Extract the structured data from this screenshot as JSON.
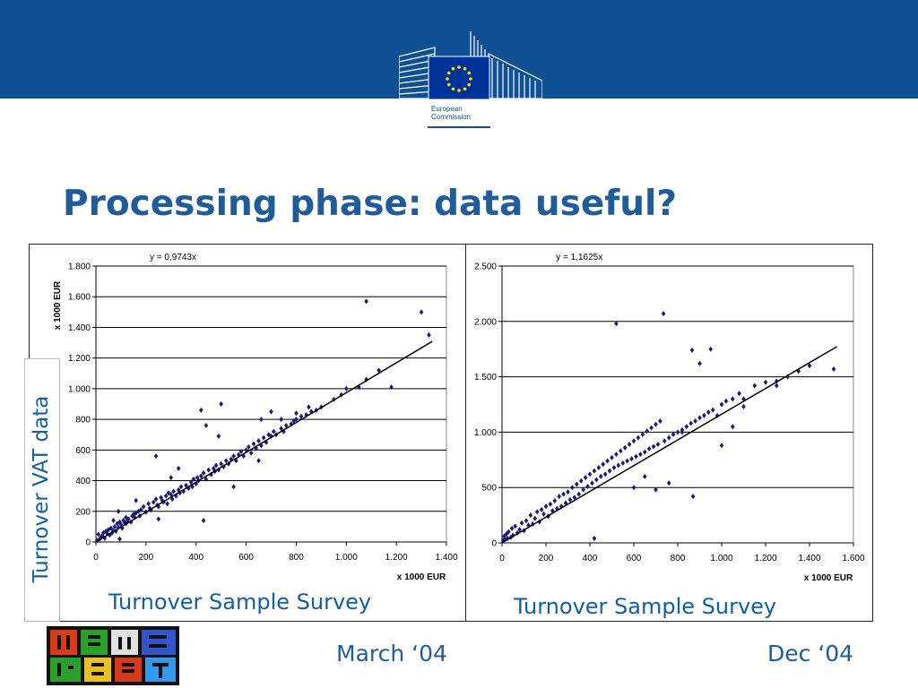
{
  "header": {
    "logo_line1": "European",
    "logo_line2": "Commission",
    "brand_color": "#0f4f93"
  },
  "slide": {
    "title": "Processing phase: data useful?",
    "y_axis_title": "Turnover VAT data",
    "left_subtitle": "Turnover Sample Survey",
    "right_subtitle": "Turnover Sample Survey",
    "date_left": "March ‘04",
    "date_right": "Dec ‘04"
  },
  "chart_data": [
    {
      "type": "scatter",
      "equation": "y = 0,9743x",
      "slope": 0.9743,
      "xlabel": "x 1000 EUR",
      "ylabel": "x 1000 EUR",
      "xlim": [
        0,
        1400
      ],
      "ylim": [
        0,
        1800
      ],
      "x_ticks": [
        0,
        200,
        400,
        600,
        800,
        1000,
        1200,
        1400
      ],
      "x_tick_labels": [
        "0",
        "200",
        "400",
        "600",
        "800",
        "1.000",
        "1.200",
        "1.400"
      ],
      "y_ticks": [
        0,
        200,
        400,
        600,
        800,
        1000,
        1200,
        1400,
        1600,
        1800
      ],
      "y_tick_labels": [
        "0",
        "200",
        "400",
        "600",
        "800",
        "1.000",
        "1.200",
        "1.400",
        "1.600",
        "1.800"
      ],
      "grid": true,
      "marker_color": "#1a1a7a",
      "points": [
        [
          5,
          10
        ],
        [
          10,
          50
        ],
        [
          15,
          20
        ],
        [
          20,
          30
        ],
        [
          25,
          40
        ],
        [
          30,
          60
        ],
        [
          35,
          25
        ],
        [
          40,
          70
        ],
        [
          45,
          55
        ],
        [
          50,
          80
        ],
        [
          55,
          45
        ],
        [
          60,
          90
        ],
        [
          65,
          60
        ],
        [
          70,
          75
        ],
        [
          75,
          100
        ],
        [
          80,
          70
        ],
        [
          85,
          120
        ],
        [
          90,
          95
        ],
        [
          95,
          130
        ],
        [
          100,
          115
        ],
        [
          105,
          90
        ],
        [
          110,
          140
        ],
        [
          115,
          125
        ],
        [
          120,
          160
        ],
        [
          125,
          135
        ],
        [
          130,
          150
        ],
        [
          140,
          130
        ],
        [
          145,
          170
        ],
        [
          150,
          180
        ],
        [
          155,
          160
        ],
        [
          160,
          190
        ],
        [
          170,
          200
        ],
        [
          175,
          170
        ],
        [
          180,
          210
        ],
        [
          190,
          230
        ],
        [
          200,
          195
        ],
        [
          210,
          250
        ],
        [
          215,
          220
        ],
        [
          220,
          210
        ],
        [
          230,
          260
        ],
        [
          240,
          280
        ],
        [
          245,
          240
        ],
        [
          250,
          230
        ],
        [
          260,
          290
        ],
        [
          265,
          270
        ],
        [
          270,
          260
        ],
        [
          280,
          300
        ],
        [
          285,
          250
        ],
        [
          290,
          320
        ],
        [
          300,
          310
        ],
        [
          305,
          280
        ],
        [
          310,
          330
        ],
        [
          320,
          300
        ],
        [
          330,
          340
        ],
        [
          335,
          320
        ],
        [
          340,
          360
        ],
        [
          350,
          330
        ],
        [
          360,
          370
        ],
        [
          370,
          350
        ],
        [
          380,
          390
        ],
        [
          385,
          360
        ],
        [
          390,
          410
        ],
        [
          400,
          380
        ],
        [
          405,
          420
        ],
        [
          410,
          400
        ],
        [
          420,
          430
        ],
        [
          430,
          450
        ],
        [
          440,
          410
        ],
        [
          450,
          470
        ],
        [
          460,
          440
        ],
        [
          470,
          480
        ],
        [
          475,
          460
        ],
        [
          480,
          500
        ],
        [
          490,
          470
        ],
        [
          500,
          510
        ],
        [
          510,
          490
        ],
        [
          520,
          530
        ],
        [
          530,
          510
        ],
        [
          540,
          540
        ],
        [
          550,
          560
        ],
        [
          560,
          530
        ],
        [
          570,
          570
        ],
        [
          580,
          590
        ],
        [
          590,
          560
        ],
        [
          600,
          600
        ],
        [
          610,
          620
        ],
        [
          620,
          580
        ],
        [
          630,
          640
        ],
        [
          640,
          610
        ],
        [
          650,
          660
        ],
        [
          660,
          630
        ],
        [
          670,
          680
        ],
        [
          680,
          650
        ],
        [
          690,
          700
        ],
        [
          700,
          690
        ],
        [
          710,
          720
        ],
        [
          720,
          700
        ],
        [
          740,
          740
        ],
        [
          750,
          720
        ],
        [
          760,
          760
        ],
        [
          780,
          770
        ],
        [
          790,
          790
        ],
        [
          800,
          800
        ],
        [
          820,
          820
        ],
        [
          840,
          830
        ],
        [
          860,
          850
        ],
        [
          880,
          860
        ],
        [
          900,
          880
        ],
        [
          950,
          930
        ],
        [
          980,
          960
        ],
        [
          1000,
          1000
        ],
        [
          1050,
          1010
        ],
        [
          1080,
          1060
        ],
        [
          1130,
          1120
        ],
        [
          1180,
          1010
        ],
        [
          240,
          560
        ],
        [
          300,
          420
        ],
        [
          330,
          480
        ],
        [
          430,
          140
        ],
        [
          420,
          860
        ],
        [
          440,
          760
        ],
        [
          490,
          690
        ],
        [
          500,
          900
        ],
        [
          550,
          360
        ],
        [
          650,
          530
        ],
        [
          660,
          800
        ],
        [
          700,
          850
        ],
        [
          740,
          800
        ],
        [
          800,
          840
        ],
        [
          850,
          880
        ],
        [
          1080,
          1570
        ],
        [
          1300,
          1500
        ],
        [
          1330,
          1350
        ],
        [
          70,
          140
        ],
        [
          90,
          200
        ],
        [
          95,
          20
        ],
        [
          120,
          120
        ],
        [
          160,
          270
        ],
        [
          250,
          150
        ]
      ]
    },
    {
      "type": "scatter",
      "equation": "y = 1,1625x",
      "slope": 1.1625,
      "xlabel": "x 1000 EUR",
      "xlim": [
        0,
        1600
      ],
      "ylim": [
        0,
        2500
      ],
      "x_ticks": [
        0,
        200,
        400,
        600,
        800,
        1000,
        1200,
        1400,
        1600
      ],
      "x_tick_labels": [
        "0",
        "200",
        "400",
        "600",
        "800",
        "1.000",
        "1.200",
        "1.400",
        "1.600"
      ],
      "y_ticks": [
        0,
        500,
        1000,
        1500,
        2000,
        2500
      ],
      "y_tick_labels": [
        "0",
        "500",
        "1.000",
        "1.500",
        "2.000",
        "2.500"
      ],
      "grid": true,
      "marker_color": "#1a1a7a",
      "points": [
        [
          5,
          20
        ],
        [
          10,
          60
        ],
        [
          15,
          30
        ],
        [
          20,
          80
        ],
        [
          25,
          40
        ],
        [
          30,
          100
        ],
        [
          40,
          50
        ],
        [
          45,
          130
        ],
        [
          50,
          70
        ],
        [
          60,
          150
        ],
        [
          70,
          90
        ],
        [
          80,
          120
        ],
        [
          90,
          180
        ],
        [
          100,
          110
        ],
        [
          110,
          200
        ],
        [
          120,
          160
        ],
        [
          130,
          250
        ],
        [
          140,
          170
        ],
        [
          150,
          220
        ],
        [
          160,
          280
        ],
        [
          170,
          190
        ],
        [
          180,
          300
        ],
        [
          190,
          260
        ],
        [
          200,
          330
        ],
        [
          210,
          240
        ],
        [
          220,
          350
        ],
        [
          230,
          290
        ],
        [
          240,
          380
        ],
        [
          250,
          310
        ],
        [
          260,
          420
        ],
        [
          270,
          330
        ],
        [
          280,
          440
        ],
        [
          290,
          360
        ],
        [
          300,
          460
        ],
        [
          310,
          390
        ],
        [
          320,
          500
        ],
        [
          330,
          410
        ],
        [
          340,
          530
        ],
        [
          350,
          440
        ],
        [
          360,
          560
        ],
        [
          370,
          480
        ],
        [
          380,
          590
        ],
        [
          390,
          510
        ],
        [
          400,
          620
        ],
        [
          410,
          540
        ],
        [
          420,
          650
        ],
        [
          430,
          570
        ],
        [
          440,
          680
        ],
        [
          450,
          600
        ],
        [
          460,
          710
        ],
        [
          470,
          620
        ],
        [
          480,
          740
        ],
        [
          490,
          650
        ],
        [
          500,
          770
        ],
        [
          510,
          680
        ],
        [
          520,
          800
        ],
        [
          530,
          700
        ],
        [
          540,
          830
        ],
        [
          550,
          720
        ],
        [
          560,
          860
        ],
        [
          570,
          740
        ],
        [
          580,
          890
        ],
        [
          590,
          760
        ],
        [
          600,
          920
        ],
        [
          610,
          780
        ],
        [
          620,
          950
        ],
        [
          630,
          800
        ],
        [
          640,
          980
        ],
        [
          650,
          820
        ],
        [
          660,
          1010
        ],
        [
          670,
          850
        ],
        [
          680,
          1040
        ],
        [
          690,
          870
        ],
        [
          700,
          1070
        ],
        [
          710,
          890
        ],
        [
          720,
          1100
        ],
        [
          740,
          920
        ],
        [
          760,
          950
        ],
        [
          780,
          980
        ],
        [
          800,
          1000
        ],
        [
          820,
          1020
        ],
        [
          840,
          1050
        ],
        [
          860,
          1080
        ],
        [
          880,
          1100
        ],
        [
          900,
          1130
        ],
        [
          920,
          1150
        ],
        [
          940,
          1180
        ],
        [
          960,
          1200
        ],
        [
          980,
          1150
        ],
        [
          1000,
          1250
        ],
        [
          1020,
          1280
        ],
        [
          1050,
          1300
        ],
        [
          1080,
          1350
        ],
        [
          1100,
          1300
        ],
        [
          1150,
          1420
        ],
        [
          1200,
          1450
        ],
        [
          1250,
          1460
        ],
        [
          1300,
          1500
        ],
        [
          1350,
          1550
        ],
        [
          1400,
          1600
        ],
        [
          1510,
          1570
        ],
        [
          520,
          1980
        ],
        [
          735,
          2070
        ],
        [
          865,
          1740
        ],
        [
          900,
          1620
        ],
        [
          950,
          1750
        ],
        [
          870,
          420
        ],
        [
          420,
          40
        ],
        [
          600,
          500
        ],
        [
          650,
          600
        ],
        [
          700,
          480
        ],
        [
          760,
          540
        ],
        [
          820,
          1000
        ],
        [
          1000,
          880
        ],
        [
          1050,
          1050
        ],
        [
          1100,
          1230
        ],
        [
          1250,
          1420
        ]
      ]
    }
  ]
}
